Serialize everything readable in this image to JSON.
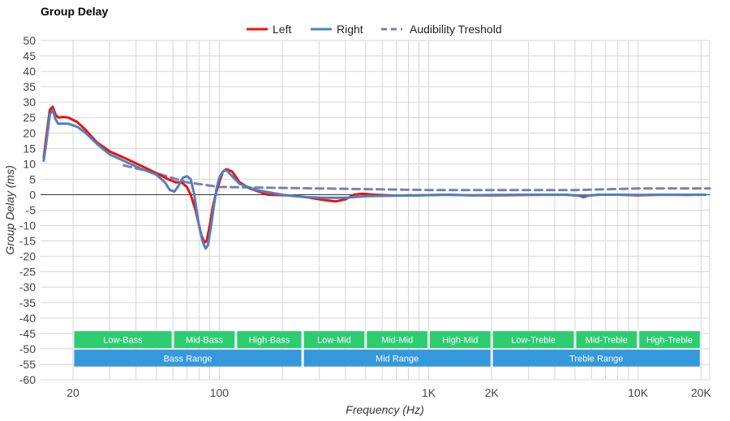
{
  "chart_data": {
    "type": "line",
    "title": "Group Delay",
    "xlabel": "Frequency (Hz)",
    "ylabel": "Group Delay (ms)",
    "xscale": "log",
    "xlim": [
      14,
      22000
    ],
    "ylim": [
      -60,
      50
    ],
    "ytick_step": 5,
    "x_tick_labels": [
      {
        "value": 20,
        "label": "20"
      },
      {
        "value": 100,
        "label": "100"
      },
      {
        "value": 1000,
        "label": "1K"
      },
      {
        "value": 2000,
        "label": "2K"
      },
      {
        "value": 10000,
        "label": "10K"
      },
      {
        "value": 20000,
        "label": "20K"
      }
    ],
    "grid": true,
    "legend_position": "top-center",
    "series": [
      {
        "name": "Left",
        "color": "#ee1111",
        "style": "solid",
        "points": [
          [
            14.5,
            12
          ],
          [
            15,
            20
          ],
          [
            15.5,
            27.5
          ],
          [
            16,
            28.5
          ],
          [
            16.5,
            26
          ],
          [
            17,
            25
          ],
          [
            18,
            25.2
          ],
          [
            19,
            25
          ],
          [
            21,
            23.5
          ],
          [
            23,
            21
          ],
          [
            26,
            17
          ],
          [
            30,
            14
          ],
          [
            35,
            12
          ],
          [
            42,
            9.5
          ],
          [
            50,
            7
          ],
          [
            57,
            5
          ],
          [
            62,
            4
          ],
          [
            66,
            4
          ],
          [
            70,
            2.5
          ],
          [
            73,
            0
          ],
          [
            77,
            -5
          ],
          [
            82,
            -13
          ],
          [
            85,
            -15.5
          ],
          [
            87,
            -15
          ],
          [
            90,
            -10
          ],
          [
            93,
            -4
          ],
          [
            96,
            0
          ],
          [
            100,
            4
          ],
          [
            104,
            7.5
          ],
          [
            108,
            8.3
          ],
          [
            115,
            7.5
          ],
          [
            125,
            4
          ],
          [
            140,
            2
          ],
          [
            170,
            0
          ],
          [
            210,
            -0.2
          ],
          [
            260,
            -0.8
          ],
          [
            320,
            -1.8
          ],
          [
            360,
            -2.2
          ],
          [
            400,
            -1.5
          ],
          [
            440,
            0
          ],
          [
            480,
            0.3
          ],
          [
            550,
            0
          ],
          [
            700,
            -0.3
          ],
          [
            900,
            -0.2
          ],
          [
            1200,
            0
          ],
          [
            1600,
            -0.2
          ],
          [
            2000,
            -0.2
          ],
          [
            3000,
            -0.1
          ],
          [
            4500,
            0
          ],
          [
            5200,
            -0.3
          ],
          [
            5500,
            -0.8
          ],
          [
            5800,
            -0.3
          ],
          [
            6500,
            0
          ],
          [
            8000,
            0
          ],
          [
            10000,
            -0.2
          ],
          [
            13000,
            0
          ],
          [
            17000,
            -0.1
          ],
          [
            21000,
            0
          ]
        ]
      },
      {
        "name": "Right",
        "color": "#4f81bd",
        "style": "solid",
        "points": [
          [
            14.5,
            11
          ],
          [
            15,
            18
          ],
          [
            15.5,
            26
          ],
          [
            16,
            27.5
          ],
          [
            16.5,
            24.5
          ],
          [
            17,
            23
          ],
          [
            18,
            23
          ],
          [
            19,
            23
          ],
          [
            21,
            22
          ],
          [
            23,
            20
          ],
          [
            26,
            16.5
          ],
          [
            30,
            13
          ],
          [
            35,
            11
          ],
          [
            42,
            8.5
          ],
          [
            50,
            6.5
          ],
          [
            55,
            4
          ],
          [
            58,
            1.5
          ],
          [
            61,
            1
          ],
          [
            64,
            3
          ],
          [
            67,
            5.5
          ],
          [
            70,
            6
          ],
          [
            73,
            5
          ],
          [
            76,
            0
          ],
          [
            79,
            -8
          ],
          [
            83,
            -15
          ],
          [
            86,
            -17.5
          ],
          [
            88,
            -16.5
          ],
          [
            91,
            -11
          ],
          [
            94,
            -4
          ],
          [
            97,
            2
          ],
          [
            100,
            5.5
          ],
          [
            104,
            7.5
          ],
          [
            108,
            8
          ],
          [
            115,
            6
          ],
          [
            125,
            3.5
          ],
          [
            150,
            1.5
          ],
          [
            200,
            0
          ],
          [
            260,
            -0.8
          ],
          [
            320,
            -1
          ],
          [
            400,
            -1
          ],
          [
            500,
            -0.5
          ],
          [
            700,
            -0.3
          ],
          [
            900,
            -0.2
          ],
          [
            1200,
            0
          ],
          [
            1600,
            -0.2
          ],
          [
            2000,
            -0.1
          ],
          [
            3000,
            0
          ],
          [
            4500,
            0
          ],
          [
            5200,
            -0.3
          ],
          [
            5500,
            -0.4
          ],
          [
            6500,
            0
          ],
          [
            8000,
            0
          ],
          [
            10000,
            -0.1
          ],
          [
            13000,
            0
          ],
          [
            17000,
            0
          ],
          [
            21000,
            0
          ]
        ]
      },
      {
        "name": "Audibility Treshold",
        "color": "#7d7fae",
        "style": "dashed",
        "points": [
          [
            35,
            9.5
          ],
          [
            50,
            7
          ],
          [
            70,
            4
          ],
          [
            100,
            2.5
          ],
          [
            200,
            2.2
          ],
          [
            500,
            1.8
          ],
          [
            1000,
            1.5
          ],
          [
            2000,
            1.5
          ],
          [
            5000,
            1.5
          ],
          [
            10000,
            2
          ],
          [
            22000,
            2
          ]
        ]
      }
    ],
    "range_bands": {
      "rows": [
        {
          "color": "#2ecc71",
          "ymin": -50,
          "ymax": -44,
          "bands": [
            {
              "label": "Low-Bass",
              "from": 20,
              "to": 60
            },
            {
              "label": "Mid-Bass",
              "from": 60,
              "to": 120
            },
            {
              "label": "High-Bass",
              "from": 120,
              "to": 250
            },
            {
              "label": "Low-Mid",
              "from": 250,
              "to": 500
            },
            {
              "label": "Mid-Mid",
              "from": 500,
              "to": 1000
            },
            {
              "label": "High-Mid",
              "from": 1000,
              "to": 2000
            },
            {
              "label": "Low-Treble",
              "from": 2000,
              "to": 5000
            },
            {
              "label": "Mid-Treble",
              "from": 5000,
              "to": 10000
            },
            {
              "label": "High-Treble",
              "from": 10000,
              "to": 20000
            }
          ]
        },
        {
          "color": "#3498db",
          "ymin": -56,
          "ymax": -50,
          "bands": [
            {
              "label": "Bass Range",
              "from": 20,
              "to": 250
            },
            {
              "label": "Mid Range",
              "from": 250,
              "to": 2000
            },
            {
              "label": "Treble Range",
              "from": 2000,
              "to": 20000
            }
          ]
        }
      ]
    }
  }
}
